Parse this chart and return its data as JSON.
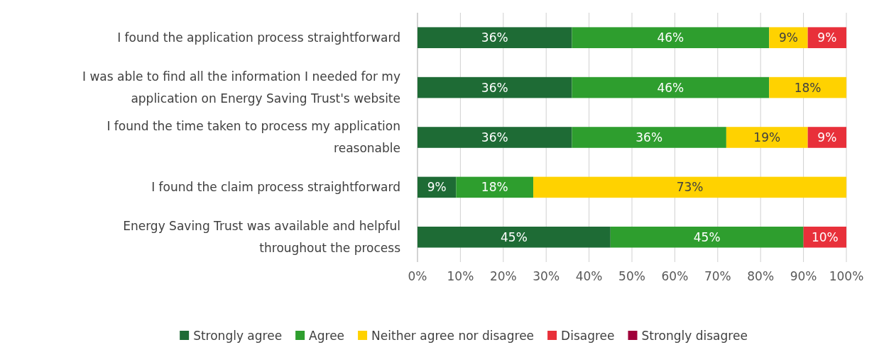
{
  "chart_data": {
    "type": "bar",
    "orientation": "horizontal",
    "stacked": true,
    "grid": "x",
    "legend": "bottom",
    "categories": [
      "I found the application process straightforward",
      "I was able to find all the information I needed for my application on Energy Saving Trust's website",
      "I found the time taken to process my application reasonable",
      "I found the claim process straightforward",
      "Energy Saving Trust was available and helpful throughout the process"
    ],
    "series": [
      {
        "name": "Strongly agree",
        "color": "#1e6b35",
        "values": [
          36,
          36,
          36,
          9,
          45
        ],
        "value_labels": [
          "36%",
          "36%",
          "36%",
          "9%",
          "45%"
        ]
      },
      {
        "name": "Agree",
        "color": "#2e9e2e",
        "values": [
          46,
          46,
          36,
          18,
          45
        ],
        "value_labels": [
          "46%",
          "46%",
          "36%",
          "18%",
          "45%"
        ]
      },
      {
        "name": "Neither agree nor disagree",
        "color": "#ffd200",
        "values": [
          9,
          18,
          19,
          73,
          null
        ],
        "value_labels": [
          "9%",
          "18%",
          "19%",
          "73%",
          null
        ]
      },
      {
        "name": "Disagree",
        "color": "#e8303a",
        "values": [
          9,
          null,
          9,
          null,
          10
        ],
        "value_labels": [
          "9%",
          null,
          "9%",
          null,
          "10%"
        ]
      },
      {
        "name": "Strongly disagree",
        "color": "#a0003a",
        "values": [
          null,
          null,
          null,
          null,
          null
        ]
      }
    ],
    "xlim": [
      0,
      100
    ],
    "xticks": [
      {
        "value": 0,
        "label": "0%"
      },
      {
        "value": 10,
        "label": "10%"
      },
      {
        "value": 20,
        "label": "20%"
      },
      {
        "value": 30,
        "label": "30%"
      },
      {
        "value": 40,
        "label": "40%"
      },
      {
        "value": 50,
        "label": "50%"
      },
      {
        "value": 60,
        "label": "60%"
      },
      {
        "value": 70,
        "label": "70%"
      },
      {
        "value": 80,
        "label": "80%"
      },
      {
        "value": 90,
        "label": "90%"
      },
      {
        "value": 100,
        "label": "100%"
      }
    ]
  }
}
